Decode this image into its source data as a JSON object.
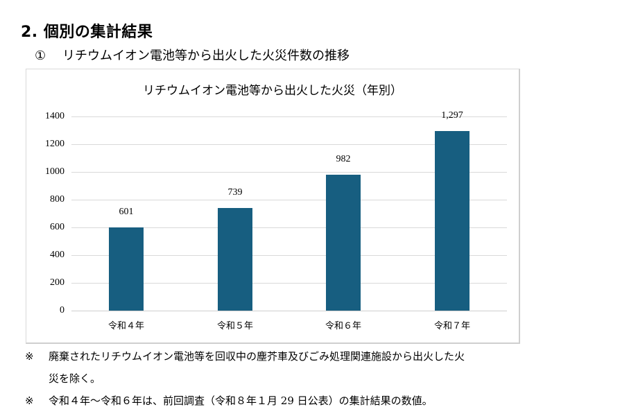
{
  "section_heading": "2.  個別の集計結果",
  "subsection": {
    "number": "①",
    "title": "リチウムイオン電池等から出火した火災件数の推移"
  },
  "chart_data": {
    "type": "bar",
    "title": "リチウムイオン電池等から出火した火災（年別）",
    "categories": [
      "令和４年",
      "令和５年",
      "令和６年",
      "令和７年"
    ],
    "values": [
      601,
      739,
      982,
      1297
    ],
    "data_labels": [
      "601",
      "739",
      "982",
      "1,297"
    ],
    "xlabel": "",
    "ylabel": "",
    "ylim": [
      0,
      1400
    ],
    "yticks": [
      "1400",
      "1200",
      "1000",
      "800",
      "600",
      "400",
      "200",
      "0"
    ],
    "grid": true,
    "legend": "none",
    "bar_color": "#175e80"
  },
  "notes": [
    {
      "mark": "※",
      "line1": "廃棄されたリチウムイオン電池等を回収中の塵芥車及びごみ処理関連施設から出火した火",
      "line2": "災を除く。"
    },
    {
      "mark": "※",
      "line1": "令和４年～令和６年は、前回調査（令和８年１月 29 日公表）の集計結果の数値。"
    }
  ]
}
